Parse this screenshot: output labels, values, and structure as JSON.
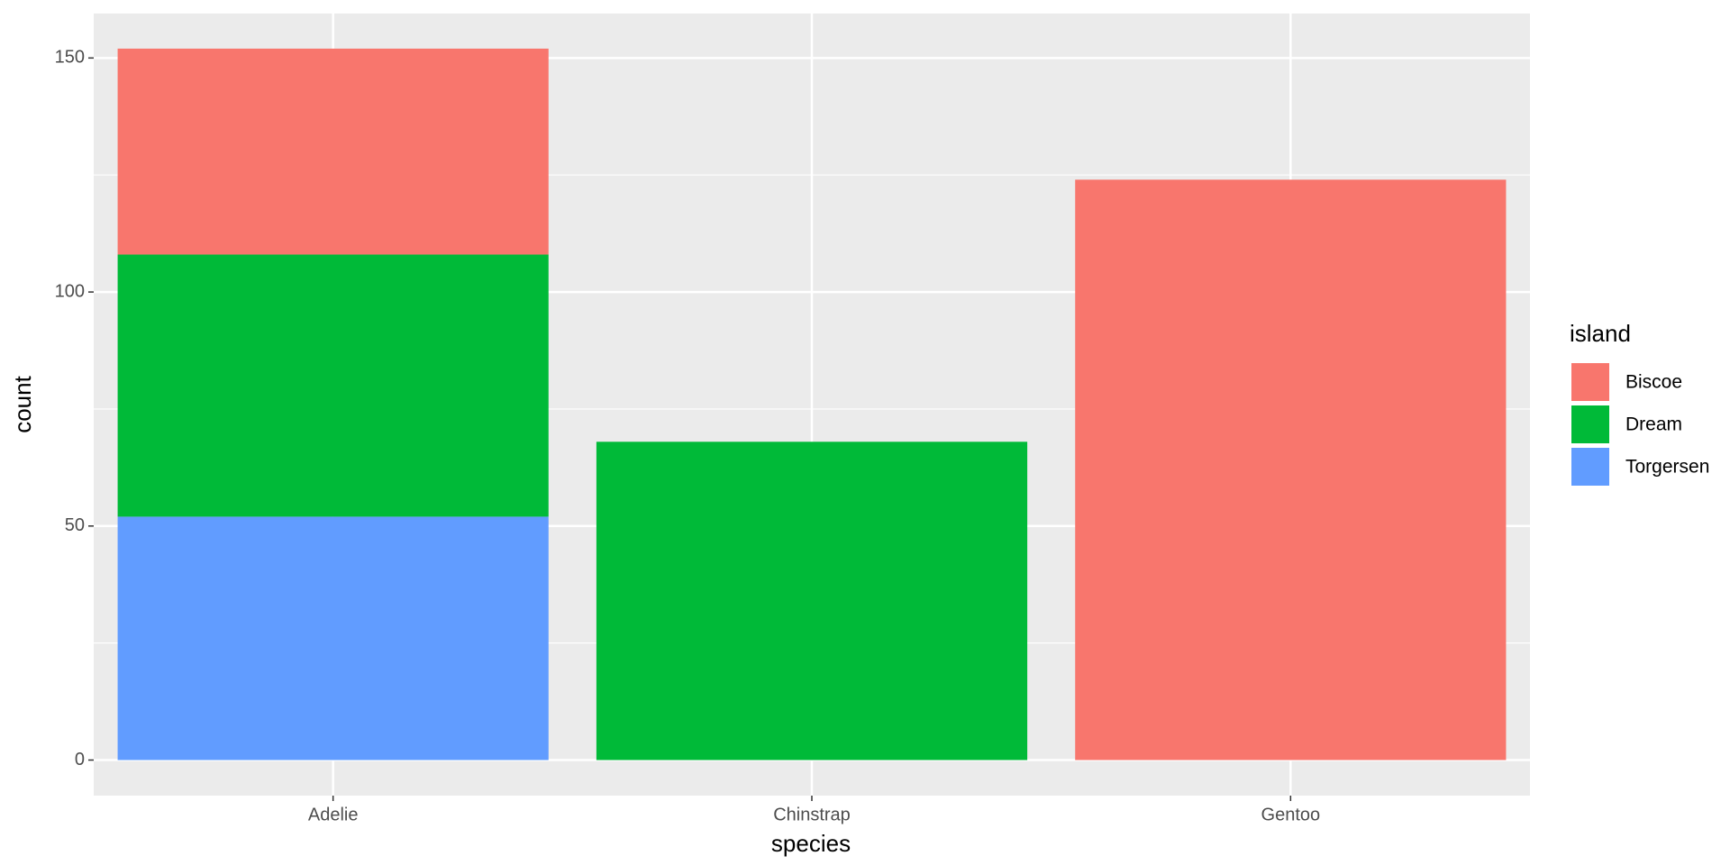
{
  "chart_data": {
    "type": "stacked_bar",
    "x_label": "species",
    "y_label": "count",
    "categories": [
      "Adelie",
      "Chinstrap",
      "Gentoo"
    ],
    "series": [
      {
        "name": "Biscoe",
        "color": "#f8766d",
        "values": [
          44,
          0,
          124
        ]
      },
      {
        "name": "Dream",
        "color": "#00ba38",
        "values": [
          56,
          68,
          0
        ]
      },
      {
        "name": "Torgersen",
        "color": "#619cff",
        "values": [
          52,
          0,
          0
        ]
      }
    ],
    "legend_title": "island",
    "legend_position": "right",
    "ylim": [
      -7.6,
      159.5
    ],
    "yticks": [
      0,
      50,
      100,
      150
    ],
    "minor_yticks": [
      25,
      75,
      125
    ],
    "grid": true
  }
}
